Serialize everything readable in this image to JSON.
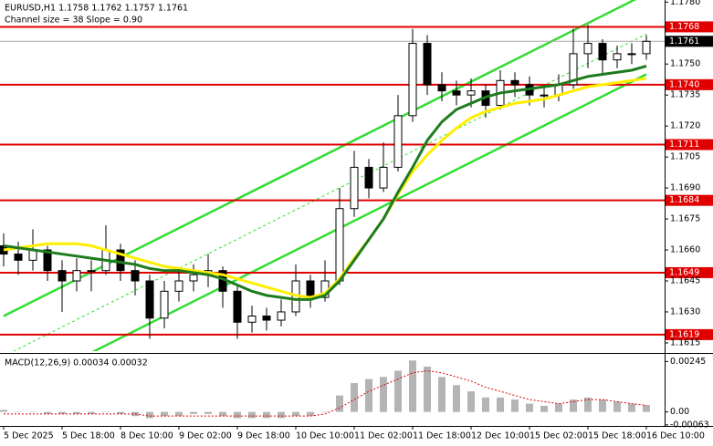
{
  "chart_data": [
    {
      "type": "candlestick",
      "title": "EURUSD,H1  1.1758 1.1762 1.1757 1.1761",
      "subtitle": "Channel size = 38 Slope = 0.90",
      "categories": [
        "5 Dec 2025",
        null,
        null,
        null,
        "5 Dec 18:00",
        null,
        null,
        null,
        "8 Dec 10:00",
        null,
        null,
        null,
        "9 Dec 02:00",
        null,
        null,
        null,
        "9 Dec 18:00",
        null,
        null,
        null,
        "10 Dec 10:00",
        null,
        null,
        null,
        "11 Dec 02:00",
        null,
        null,
        null,
        "11 Dec 18:00",
        null,
        null,
        null,
        "12 Dec 10:00",
        null,
        null,
        null,
        "15 Dec 02:00",
        null,
        null,
        null,
        "15 Dec 18:00",
        null,
        null,
        null,
        "16 Dec 10:00"
      ],
      "open": [
        1.1662,
        1.1658,
        1.1655,
        1.166,
        1.165,
        1.1645,
        1.165,
        1.165,
        1.166,
        1.165,
        1.1645,
        1.1627,
        1.164,
        1.1645,
        1.1648,
        1.165,
        1.164,
        1.1625,
        1.1628,
        1.1626,
        1.163,
        1.1645,
        1.1637,
        1.1645,
        1.168,
        1.17,
        1.169,
        1.17,
        1.1725,
        1.176,
        1.174,
        1.1737,
        1.1735,
        1.1737,
        1.173,
        1.1742,
        1.174,
        1.1735,
        1.1735,
        1.174,
        1.1755,
        1.176,
        1.1752,
        1.1755,
        1.1755
      ],
      "high": [
        1.1668,
        1.1664,
        1.167,
        1.1662,
        1.1655,
        1.1656,
        1.1655,
        1.1672,
        1.1663,
        1.1655,
        1.1648,
        1.1645,
        1.165,
        1.1653,
        1.1658,
        1.1652,
        1.1643,
        1.1633,
        1.1632,
        1.1636,
        1.1653,
        1.1648,
        1.1655,
        1.169,
        1.1708,
        1.1704,
        1.1712,
        1.1735,
        1.1767,
        1.1764,
        1.1746,
        1.1742,
        1.1743,
        1.174,
        1.1747,
        1.1746,
        1.1744,
        1.174,
        1.1745,
        1.1767,
        1.1769,
        1.1762,
        1.1759,
        1.176,
        1.1764
      ],
      "low": [
        1.1652,
        1.1648,
        1.165,
        1.1645,
        1.163,
        1.164,
        1.164,
        1.1648,
        1.1645,
        1.1638,
        1.1617,
        1.1622,
        1.1635,
        1.164,
        1.1642,
        1.1632,
        1.1617,
        1.162,
        1.1621,
        1.1623,
        1.1628,
        1.1632,
        1.1635,
        1.1643,
        1.1676,
        1.1685,
        1.1688,
        1.1698,
        1.1722,
        1.1735,
        1.1732,
        1.173,
        1.1729,
        1.1724,
        1.1728,
        1.1734,
        1.173,
        1.1729,
        1.1732,
        1.1738,
        1.1748,
        1.1745,
        1.1748,
        1.175,
        1.1752
      ],
      "close": [
        1.1658,
        1.1655,
        1.166,
        1.165,
        1.1645,
        1.165,
        1.165,
        1.166,
        1.165,
        1.1645,
        1.1627,
        1.164,
        1.1645,
        1.1648,
        1.165,
        1.164,
        1.1625,
        1.1628,
        1.1626,
        1.163,
        1.1645,
        1.1637,
        1.1645,
        1.168,
        1.17,
        1.169,
        1.17,
        1.1725,
        1.176,
        1.174,
        1.1737,
        1.1735,
        1.1737,
        1.173,
        1.1742,
        1.174,
        1.1735,
        1.1735,
        1.174,
        1.1755,
        1.176,
        1.1752,
        1.1755,
        1.1755,
        1.1761
      ],
      "ma_fast": {
        "color": "#1e7b1e",
        "values": [
          1.1662,
          1.1661,
          1.166,
          1.1659,
          1.1658,
          1.1657,
          1.1656,
          1.1655,
          1.1654,
          1.1653,
          1.1651,
          1.165,
          1.165,
          1.1649,
          1.1648,
          1.1646,
          1.1643,
          1.164,
          1.1638,
          1.1637,
          1.1636,
          1.1636,
          1.1638,
          1.1645,
          1.1655,
          1.1665,
          1.1675,
          1.1688,
          1.17,
          1.1713,
          1.1722,
          1.1728,
          1.1731,
          1.1734,
          1.1736,
          1.1737,
          1.1738,
          1.1739,
          1.174,
          1.1742,
          1.1744,
          1.1745,
          1.1746,
          1.1747,
          1.1749
        ]
      },
      "ma_slow": {
        "color": "#ffee00",
        "values": [
          1.166,
          1.1661,
          1.1662,
          1.1663,
          1.1663,
          1.1663,
          1.1662,
          1.166,
          1.1658,
          1.1656,
          1.1654,
          1.1652,
          1.1651,
          1.165,
          1.1649,
          1.1648,
          1.1646,
          1.1644,
          1.1642,
          1.164,
          1.1638,
          1.1637,
          1.1639,
          1.1646,
          1.1656,
          1.1665,
          1.1675,
          1.1687,
          1.1698,
          1.1706,
          1.1713,
          1.1719,
          1.1724,
          1.1727,
          1.1729,
          1.1731,
          1.1732,
          1.1733,
          1.1735,
          1.1737,
          1.1739,
          1.174,
          1.1741,
          1.1742,
          1.1743
        ]
      },
      "channel": {
        "color": "#33dd33",
        "upper": [
          1.1628,
          1.1784
        ],
        "lower": [
          1.1589,
          1.1745
        ]
      },
      "levels": [
        1.1768,
        {
          "value": 1.174,
          "label": "1.1740"
        },
        1.1711,
        1.1684,
        1.1649,
        1.1619
      ],
      "level_color": "#e00000",
      "last_price": 1.1761,
      "ylim": [
        1.1611,
        1.1781
      ],
      "yticks": [
        {
          "value": 1.178,
          "label": "1.1780"
        },
        {
          "value": 1.175,
          "label": "1.1750"
        },
        1.1735,
        {
          "value": 1.172,
          "label": "1.1720"
        },
        1.1705,
        {
          "value": 1.169,
          "label": "1.1690"
        },
        1.1675,
        {
          "value": 1.166,
          "label": "1.1660"
        },
        1.1645,
        {
          "value": 1.163,
          "label": "1.1630"
        },
        1.1615
      ]
    },
    {
      "type": "macd",
      "title": "MACD(12,26,9) 0.00034 0.00032",
      "values": [
        0.0001,
        0.0,
        0.0,
        -0.0001,
        -0.0001,
        -0.0001,
        -0.0001,
        0.0,
        -0.0001,
        -0.0002,
        -0.0003,
        -0.0002,
        -0.0002,
        -0.0001,
        -0.0001,
        -0.0002,
        -0.0003,
        -0.0003,
        -0.0003,
        -0.0003,
        -0.0002,
        -0.0002,
        0.0,
        0.0008,
        0.0014,
        0.0016,
        0.0017,
        0.002,
        0.0025,
        0.0022,
        0.0017,
        0.0013,
        0.001,
        0.0007,
        0.0007,
        0.0006,
        0.0004,
        0.0003,
        0.0004,
        0.0006,
        0.0007,
        0.0006,
        0.0005,
        0.0004,
        0.00034
      ],
      "signal": [
        -0.0001,
        -0.0001,
        -0.0001,
        -0.0001,
        -0.0001,
        -0.0001,
        -0.0001,
        -0.0001,
        -0.0001,
        -0.0001,
        -0.0002,
        -0.0002,
        -0.0002,
        -0.0002,
        -0.0002,
        -0.0002,
        -0.0002,
        -0.0002,
        -0.0002,
        -0.0002,
        -0.0002,
        -0.0002,
        -0.0001,
        0.0002,
        0.0006,
        0.001,
        0.0013,
        0.0016,
        0.0019,
        0.002,
        0.0019,
        0.0017,
        0.0015,
        0.0012,
        0.001,
        0.0008,
        0.0006,
        0.0005,
        0.0004,
        0.0005,
        0.0006,
        0.0006,
        0.0005,
        0.0004,
        0.00032
      ],
      "color": "#b4b4b4",
      "signal_color": "#e00000",
      "ylim": [
        -0.00068,
        0.00282
      ],
      "yticks": [
        0.00245,
        {
          "value": 0,
          "label": "0.00"
        },
        -0.00063
      ]
    }
  ]
}
